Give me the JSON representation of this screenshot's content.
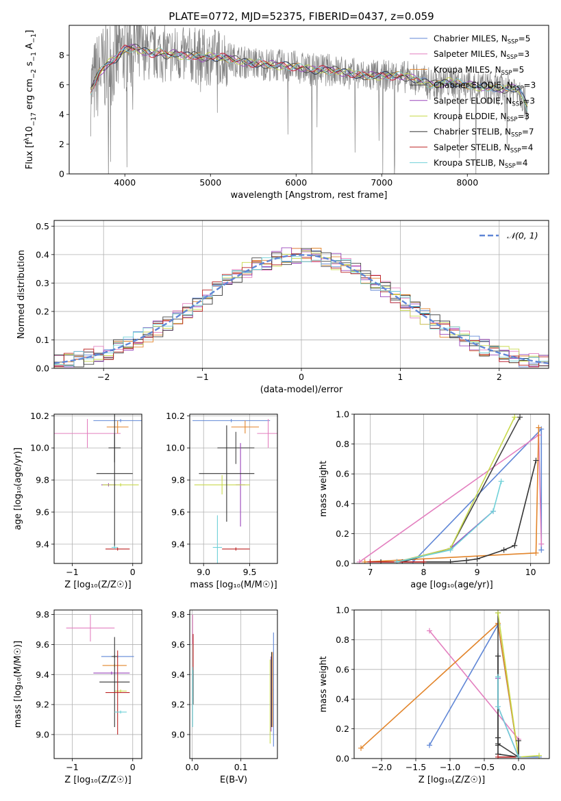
{
  "figure_title": "PLATE=0772, MJD=52375, FIBERID=0437, z=0.059",
  "models": [
    {
      "name": "Chabrier MILES, N",
      "sub": "SSP",
      "eq": "=5",
      "color": "#5f86d6"
    },
    {
      "name": "Salpeter MILES, N",
      "sub": "SSP",
      "eq": "=3",
      "color": "#e37fbf"
    },
    {
      "name": "Kroupa MILES, N",
      "sub": "SSP",
      "eq": "=5",
      "color": "#e2842a"
    },
    {
      "name": "Chabrier ELODIE, N",
      "sub": "SSP",
      "eq": "=3",
      "color": "#444444"
    },
    {
      "name": "Salpeter ELODIE, N",
      "sub": "SSP",
      "eq": "=3",
      "color": "#9944bb"
    },
    {
      "name": "Kroupa ELODIE, N",
      "sub": "SSP",
      "eq": "=3",
      "color": "#c7d94a"
    },
    {
      "name": "Chabrier STELIB, N",
      "sub": "SSP",
      "eq": "=7",
      "color": "#333333"
    },
    {
      "name": "Salpeter STELIB, N",
      "sub": "SSP",
      "eq": "=4",
      "color": "#bb2222"
    },
    {
      "name": "Kroupa STELIB, N",
      "sub": "SSP",
      "eq": "=4",
      "color": "#6fd1d8"
    }
  ],
  "chart_data": [
    {
      "id": "spectrum",
      "type": "line",
      "xlabel": "wavelength [Angstrom, rest frame]",
      "ylabel": "Flux [f",
      "ylabel_sub": "λ",
      "ylabel_rest": "10",
      "ylabel_sup1": "−17",
      "ylabel_tail": " erg cm",
      "ylabel_sup2": "−2",
      "ylabel_tail2": " s",
      "ylabel_sup3": "−1",
      "ylabel_tail3": " A",
      "ylabel_sup4": "−1",
      "ylabel_end": "]",
      "xlim": [
        3350,
        8950
      ],
      "ylim": [
        0,
        10
      ],
      "xticks": [
        4000,
        5000,
        6000,
        7000,
        8000
      ],
      "yticks": [
        0,
        2,
        4,
        6,
        8
      ],
      "grid": false,
      "legend": "right",
      "continuum": {
        "x": [
          3600,
          3700,
          3800,
          3900,
          4000,
          4100,
          4200,
          4300,
          4400,
          4500,
          4600,
          4700,
          4800,
          4900,
          5000,
          5200,
          5400,
          5600,
          5800,
          6000,
          6200,
          6400,
          6600,
          6800,
          7000,
          7200,
          7400,
          7600,
          7800,
          8000,
          8200,
          8400,
          8600,
          8700
        ],
        "y": [
          5.6,
          6.8,
          7.4,
          7.8,
          8.4,
          8.5,
          8.3,
          8.1,
          8.2,
          8.0,
          8.1,
          7.9,
          8.0,
          7.8,
          7.9,
          7.8,
          7.5,
          7.4,
          7.3,
          7.2,
          7.0,
          7.0,
          6.8,
          6.6,
          6.6,
          6.6,
          6.4,
          6.0,
          6.2,
          6.0,
          5.8,
          5.7,
          5.8,
          4.5
        ]
      },
      "data_noise": 1.4
    },
    {
      "id": "residuals",
      "type": "histogram",
      "xlabel": "(data-model)/error",
      "ylabel": "Normed distribution",
      "xlim": [
        -2.5,
        2.5
      ],
      "ylim": [
        0,
        0.52
      ],
      "xticks": [
        -2,
        -1,
        0,
        1,
        2
      ],
      "xtick_labels": [
        "−2",
        "−1",
        "0",
        "1",
        "2"
      ],
      "yticks": [
        0,
        0.1,
        0.2,
        0.3,
        0.4,
        0.5
      ],
      "ytick_labels": [
        "0.0",
        "0.1",
        "0.2",
        "0.3",
        "0.4",
        "0.5"
      ],
      "grid": true,
      "legend": "top-right",
      "legend_label": "𝒩(0, 1)",
      "normal_color": "#5f86d6",
      "bin_edges_start": -2.5,
      "bin_width": 0.1
    },
    {
      "id": "age-vs-Z",
      "type": "scatter",
      "xlabel": "Z [log₁₀(Z/Z☉)]",
      "ylabel": "age  [log₁₀(age/yr)]",
      "xlim": [
        -1.3,
        0.15
      ],
      "ylim": [
        9.28,
        10.21
      ],
      "xticks": [
        -1,
        0
      ],
      "xtick_labels": [
        "−1",
        "0"
      ],
      "yticks": [
        9.4,
        9.6,
        9.8,
        10.0,
        10.2
      ],
      "ytick_labels": [
        "9.4",
        "9.6",
        "9.8",
        "10.0",
        "10.2"
      ],
      "grid": true,
      "points": [
        {
          "model": 0,
          "x": -0.2,
          "y": 10.17,
          "xerr": 0.45,
          "yerr": 0.01
        },
        {
          "model": 1,
          "x": -0.75,
          "y": 10.09,
          "xerr": 0.55,
          "yerr": 0.09
        },
        {
          "model": 2,
          "x": -0.25,
          "y": 10.13,
          "xerr": 0.18,
          "yerr": 0.04
        },
        {
          "model": 3,
          "x": -0.3,
          "y": 10.0,
          "xerr": 0.1,
          "yerr": 0.09
        },
        {
          "model": 4,
          "x": -0.4,
          "y": 9.77,
          "xerr": 0.12,
          "yerr": 0.01
        },
        {
          "model": 5,
          "x": -0.2,
          "y": 9.77,
          "xerr": 0.3,
          "yerr": 0.01
        },
        {
          "model": 6,
          "x": -0.3,
          "y": 9.84,
          "xerr": 0.3,
          "yerr": 0.46
        },
        {
          "model": 7,
          "x": -0.25,
          "y": 9.37,
          "xerr": 0.2,
          "yerr": 0.01
        },
        {
          "model": 8,
          "x": -0.3,
          "y": 9.38,
          "xerr": 0.05,
          "yerr": 0.01
        }
      ]
    },
    {
      "id": "age-vs-mass",
      "type": "scatter",
      "xlabel": "mass [log₁₀(M/M☉)]",
      "ylabel": "",
      "xlim": [
        8.85,
        9.8
      ],
      "ylim": [
        9.28,
        10.21
      ],
      "xticks": [
        9.0,
        9.5
      ],
      "xtick_labels": [
        "9.0",
        "9.5"
      ],
      "yticks": [
        9.4,
        9.6,
        9.8,
        10.0,
        10.2
      ],
      "ytick_labels": [
        "9.4",
        "9.6",
        "9.8",
        "10.0",
        "10.2"
      ],
      "grid": true,
      "points": [
        {
          "model": 0,
          "x": 9.3,
          "y": 10.17,
          "xerr": 0.42,
          "yerr": 0.01
        },
        {
          "model": 1,
          "x": 9.7,
          "y": 10.09,
          "xerr": 0.12,
          "yerr": 0.09
        },
        {
          "model": 2,
          "x": 9.45,
          "y": 10.13,
          "xerr": 0.15,
          "yerr": 0.04
        },
        {
          "model": 3,
          "x": 9.35,
          "y": 10.0,
          "xerr": 0.2,
          "yerr": 0.1
        },
        {
          "model": 4,
          "x": 9.4,
          "y": 9.77,
          "xerr": 0.05,
          "yerr": 0.26
        },
        {
          "model": 5,
          "x": 9.2,
          "y": 9.77,
          "xerr": 0.3,
          "yerr": 0.06
        },
        {
          "model": 6,
          "x": 9.25,
          "y": 9.84,
          "xerr": 0.3,
          "yerr": 0.3
        },
        {
          "model": 7,
          "x": 9.35,
          "y": 9.37,
          "xerr": 0.15,
          "yerr": 0.01
        },
        {
          "model": 8,
          "x": 9.15,
          "y": 9.38,
          "xerr": 0.05,
          "yerr": 0.2
        }
      ]
    },
    {
      "id": "weight-vs-age",
      "type": "line",
      "xlabel": "age  [log₁₀(age/yr)]",
      "ylabel": "mass weight",
      "xlim": [
        6.7,
        10.35
      ],
      "ylim": [
        0,
        1.0
      ],
      "xticks": [
        7,
        8,
        9,
        10
      ],
      "xtick_labels": [
        "7",
        "8",
        "9",
        "10"
      ],
      "yticks": [
        0,
        0.2,
        0.4,
        0.6,
        0.8,
        1.0
      ],
      "ytick_labels": [
        "0.0",
        "0.2",
        "0.4",
        "0.6",
        "0.8",
        "1.0"
      ],
      "grid": true,
      "series": [
        {
          "model": 0,
          "x": [
            7.5,
            7.8,
            10.2,
            10.2
          ],
          "y": [
            0.01,
            0.01,
            0.9,
            0.09
          ]
        },
        {
          "model": 1,
          "x": [
            6.8,
            10.15,
            10.2
          ],
          "y": [
            0.01,
            0.86,
            0.13
          ]
        },
        {
          "model": 2,
          "x": [
            6.9,
            10.1,
            10.15
          ],
          "y": [
            0.01,
            0.07,
            0.91
          ]
        },
        {
          "model": 3,
          "x": [
            7.6,
            8.5,
            9.8
          ],
          "y": [
            0.01,
            0.1,
            0.98
          ]
        },
        {
          "model": 4,
          "x": [
            7.0,
            7.5,
            8.5,
            9.3
          ],
          "y": [
            0.01,
            0.01,
            0.1,
            0.35
          ]
        },
        {
          "model": 5,
          "x": [
            7.5,
            8.5,
            9.7
          ],
          "y": [
            0.01,
            0.1,
            0.98
          ]
        },
        {
          "model": 6,
          "x": [
            7.2,
            8.0,
            8.5,
            8.8,
            9.0,
            9.5,
            9.7,
            10.1
          ],
          "y": [
            0.01,
            0.01,
            0.01,
            0.02,
            0.03,
            0.09,
            0.12,
            0.69
          ]
        },
        {
          "model": 7,
          "x": [
            7.0,
            7.5,
            8.0
          ],
          "y": [
            0.01,
            0.01,
            0.01
          ]
        },
        {
          "model": 8,
          "x": [
            7.5,
            8.5,
            9.3,
            9.45
          ],
          "y": [
            0.01,
            0.09,
            0.35,
            0.55
          ]
        }
      ]
    },
    {
      "id": "mass-vs-Z",
      "type": "scatter",
      "xlabel": "Z [log₁₀(Z/Z☉)]",
      "ylabel": "mass [log₁₀(M/M☉)]",
      "xlim": [
        -1.3,
        0.15
      ],
      "ylim": [
        8.84,
        9.83
      ],
      "xticks": [
        -1,
        0
      ],
      "xtick_labels": [
        "−1",
        "0"
      ],
      "yticks": [
        9.0,
        9.2,
        9.4,
        9.6,
        9.8
      ],
      "ytick_labels": [
        "9.0",
        "9.2",
        "9.4",
        "9.6",
        "9.8"
      ],
      "grid": true,
      "points": [
        {
          "model": 0,
          "x": -0.25,
          "y": 9.52,
          "xerr": 0.27,
          "yerr": 0.01
        },
        {
          "model": 1,
          "x": -0.7,
          "y": 9.71,
          "xerr": 0.4,
          "yerr": 0.09
        },
        {
          "model": 2,
          "x": -0.3,
          "y": 9.46,
          "xerr": 0.2,
          "yerr": 0.01
        },
        {
          "model": 3,
          "x": -0.3,
          "y": 9.52,
          "xerr": 0.05,
          "yerr": 0.01
        },
        {
          "model": 4,
          "x": -0.35,
          "y": 9.41,
          "xerr": 0.3,
          "yerr": 0.01
        },
        {
          "model": 5,
          "x": -0.2,
          "y": 9.29,
          "xerr": 0.1,
          "yerr": 0.01
        },
        {
          "model": 6,
          "x": -0.3,
          "y": 9.35,
          "xerr": 0.25,
          "yerr": 0.3
        },
        {
          "model": 7,
          "x": -0.25,
          "y": 9.28,
          "xerr": 0.2,
          "yerr": 0.28
        },
        {
          "model": 8,
          "x": -0.2,
          "y": 9.15,
          "xerr": 0.1,
          "yerr": 0.01
        }
      ]
    },
    {
      "id": "mass-vs-EBV",
      "type": "scatter",
      "xlabel": "E(B-V)",
      "ylabel": "",
      "xlim": [
        -0.005,
        0.175
      ],
      "ylim": [
        8.84,
        9.83
      ],
      "xticks": [
        0.0,
        0.1
      ],
      "xtick_labels": [
        "0.0",
        "0.1"
      ],
      "yticks": [
        9.0,
        9.2,
        9.4,
        9.6,
        9.8
      ],
      "ytick_labels": [
        "9.0",
        "9.2",
        "9.4",
        "9.6",
        "9.8"
      ],
      "grid": true,
      "points": [
        {
          "model": 0,
          "x": 0.167,
          "y": 9.3,
          "xerr": 0.0005,
          "yerr": 0.38
        },
        {
          "model": 1,
          "x": 0.001,
          "y": 9.7,
          "xerr": 0.0005,
          "yerr": 0.1
        },
        {
          "model": 2,
          "x": 0.165,
          "y": 9.3,
          "xerr": 0.0005,
          "yerr": 0.25
        },
        {
          "model": 3,
          "x": 0.002,
          "y": 9.4,
          "xerr": 0.0005,
          "yerr": 0.2
        },
        {
          "model": 4,
          "x": 0.162,
          "y": 9.27,
          "xerr": 0.0005,
          "yerr": 0.25
        },
        {
          "model": 5,
          "x": 0.16,
          "y": 9.22,
          "xerr": 0.0005,
          "yerr": 0.28
        },
        {
          "model": 6,
          "x": 0.163,
          "y": 9.3,
          "xerr": 0.0005,
          "yerr": 0.25
        },
        {
          "model": 7,
          "x": 0.002,
          "y": 9.55,
          "xerr": 0.0005,
          "yerr": 0.12
        },
        {
          "model": 8,
          "x": 0.001,
          "y": 9.25,
          "xerr": 0.0005,
          "yerr": 0.2
        }
      ]
    },
    {
      "id": "weight-vs-Z",
      "type": "line",
      "xlabel": "Z [log₁₀(Z/Z☉)]",
      "ylabel": "mass weight",
      "xlim": [
        -2.4,
        0.45
      ],
      "ylim": [
        0,
        1.0
      ],
      "xticks": [
        -2.0,
        -1.5,
        -1.0,
        -0.5,
        0.0
      ],
      "xtick_labels": [
        "−2.0",
        "−1.5",
        "−1.0",
        "−0.5",
        "0.0"
      ],
      "yticks": [
        0,
        0.2,
        0.4,
        0.6,
        0.8,
        1.0
      ],
      "ytick_labels": [
        "0.0",
        "0.2",
        "0.4",
        "0.6",
        "0.8",
        "1.0"
      ],
      "grid": true,
      "series": [
        {
          "model": 0,
          "x": [
            -1.3,
            -0.3,
            0.0,
            0.3
          ],
          "y": [
            0.09,
            0.9,
            0.01,
            0.01
          ]
        },
        {
          "model": 1,
          "x": [
            -1.3,
            0.0,
            0.0
          ],
          "y": [
            0.86,
            0.13,
            0.01
          ]
        },
        {
          "model": 2,
          "x": [
            -2.3,
            -0.3,
            0.0
          ],
          "y": [
            0.07,
            0.91,
            0.01
          ]
        },
        {
          "model": 3,
          "x": [
            -0.3,
            -0.3,
            0.0
          ],
          "y": [
            0.98,
            0.1,
            0.01
          ]
        },
        {
          "model": 4,
          "x": [
            -0.3,
            -0.3,
            0.0
          ],
          "y": [
            0.54,
            0.35,
            0.01
          ]
        },
        {
          "model": 5,
          "x": [
            -0.3,
            0.0,
            0.3
          ],
          "y": [
            0.98,
            0.01,
            0.02
          ]
        },
        {
          "model": 6,
          "x": [
            -0.3,
            -0.3,
            -0.3,
            -0.3,
            0.0,
            0.0
          ],
          "y": [
            0.69,
            0.14,
            0.09,
            0.03,
            0.01,
            0.12
          ]
        },
        {
          "model": 7,
          "x": [
            -0.3,
            0.0
          ],
          "y": [
            0.01,
            0.01
          ]
        },
        {
          "model": 8,
          "x": [
            -0.3,
            -0.3,
            0.0
          ],
          "y": [
            0.55,
            0.35,
            0.01
          ]
        }
      ]
    }
  ]
}
